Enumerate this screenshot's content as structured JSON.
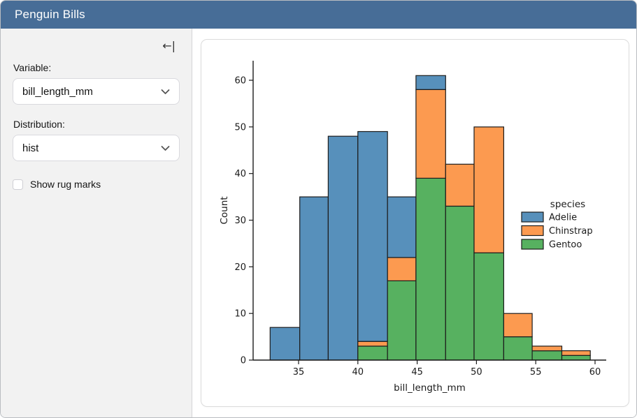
{
  "header": {
    "title": "Penguin Bills",
    "bg_color": "#476D97"
  },
  "sidebar": {
    "collapse_icon_glyph": "←|",
    "variable": {
      "label": "Variable:",
      "value": "bill_length_mm"
    },
    "distribution": {
      "label": "Distribution:",
      "value": "hist"
    },
    "rug": {
      "label": "Show rug marks",
      "checked": false
    }
  },
  "chart_data": {
    "type": "bar",
    "subtype": "stacked-histogram",
    "title": "",
    "xlabel": "bill_length_mm",
    "ylabel": "Count",
    "legend_title": "species",
    "legend_position": "center right",
    "grid": false,
    "bin_edges": [
      32.6,
      35.1,
      37.5,
      40.0,
      42.5,
      44.9,
      47.4,
      49.8,
      52.3,
      54.7,
      57.2,
      59.6
    ],
    "series": [
      {
        "name": "Adelie",
        "color": "#5790BB",
        "values": [
          7,
          35,
          48,
          45,
          13,
          3,
          0,
          0,
          0,
          0,
          0
        ]
      },
      {
        "name": "Chinstrap",
        "color": "#FC9A50",
        "values": [
          0,
          0,
          0,
          1,
          5,
          19,
          9,
          27,
          5,
          1,
          1
        ]
      },
      {
        "name": "Gentoo",
        "color": "#57B160",
        "values": [
          0,
          0,
          0,
          3,
          17,
          39,
          33,
          23,
          5,
          2,
          1
        ]
      }
    ],
    "stack_order_bottom_to_top": [
      "Gentoo",
      "Chinstrap",
      "Adelie"
    ],
    "bin_totals": [
      7,
      35,
      48,
      49,
      35,
      61,
      42,
      50,
      10,
      3,
      2
    ],
    "bar_edge_color": "#1c1c1c",
    "x_ticks": [
      35,
      40,
      45,
      50,
      55,
      60
    ],
    "y_ticks": [
      0,
      10,
      20,
      30,
      40,
      50,
      60
    ],
    "xlim": [
      31.1,
      61.1
    ],
    "ylim": [
      0,
      64.2
    ]
  }
}
